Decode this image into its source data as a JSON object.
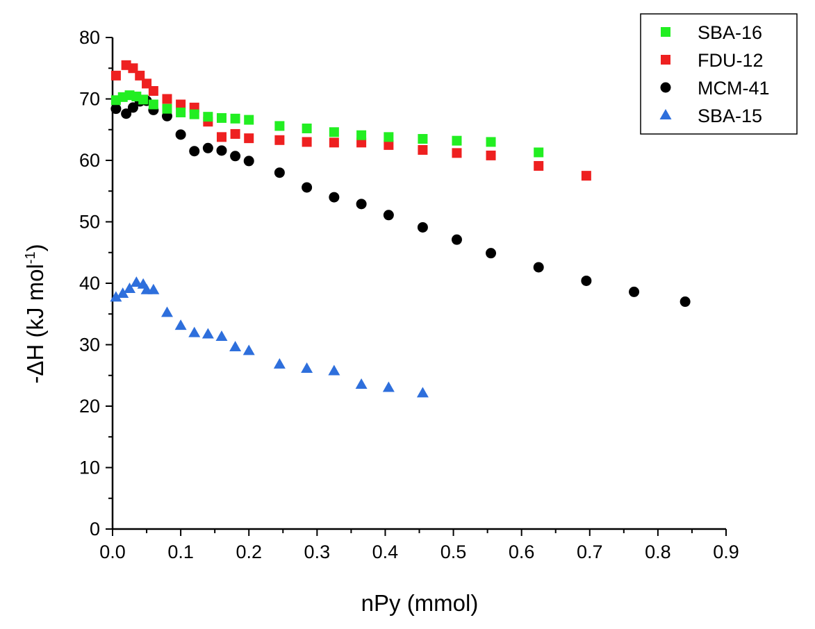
{
  "chart_data": {
    "type": "scatter",
    "title": "",
    "xlabel": "nPy (mmol)",
    "ylabel_main": "-ΔH (kJ mol",
    "ylabel_sup": "-1",
    "ylabel_close": ")",
    "xlim": [
      0.0,
      0.9
    ],
    "ylim": [
      0,
      80
    ],
    "xticks": [
      "0.0",
      "0.1",
      "0.2",
      "0.3",
      "0.4",
      "0.5",
      "0.6",
      "0.7",
      "0.8",
      "0.9"
    ],
    "yticks": [
      "0",
      "10",
      "20",
      "30",
      "40",
      "50",
      "60",
      "70",
      "80"
    ],
    "grid": false,
    "legend_position": "top-right",
    "series": [
      {
        "name": "SBA-16",
        "marker": "square",
        "color": "#22ee22",
        "points": [
          [
            0.005,
            69.8
          ],
          [
            0.015,
            70.3
          ],
          [
            0.025,
            70.6
          ],
          [
            0.035,
            70.4
          ],
          [
            0.045,
            69.9
          ],
          [
            0.06,
            69.1
          ],
          [
            0.08,
            68.4
          ],
          [
            0.1,
            67.8
          ],
          [
            0.12,
            67.5
          ],
          [
            0.14,
            67.1
          ],
          [
            0.16,
            66.9
          ],
          [
            0.18,
            66.8
          ],
          [
            0.2,
            66.6
          ],
          [
            0.245,
            65.6
          ],
          [
            0.285,
            65.2
          ],
          [
            0.325,
            64.6
          ],
          [
            0.365,
            64.1
          ],
          [
            0.405,
            63.8
          ],
          [
            0.455,
            63.5
          ],
          [
            0.505,
            63.2
          ],
          [
            0.555,
            63.0
          ],
          [
            0.625,
            61.3
          ]
        ]
      },
      {
        "name": "FDU-12",
        "marker": "square",
        "color": "#ee2020",
        "points": [
          [
            0.005,
            73.8
          ],
          [
            0.02,
            75.5
          ],
          [
            0.03,
            75.0
          ],
          [
            0.04,
            73.8
          ],
          [
            0.05,
            72.5
          ],
          [
            0.06,
            71.3
          ],
          [
            0.08,
            70.0
          ],
          [
            0.1,
            69.1
          ],
          [
            0.12,
            68.6
          ],
          [
            0.14,
            66.3
          ],
          [
            0.16,
            63.8
          ],
          [
            0.18,
            64.3
          ],
          [
            0.2,
            63.6
          ],
          [
            0.245,
            63.3
          ],
          [
            0.285,
            63.0
          ],
          [
            0.325,
            62.9
          ],
          [
            0.365,
            62.9
          ],
          [
            0.405,
            62.5
          ],
          [
            0.455,
            61.7
          ],
          [
            0.505,
            61.2
          ],
          [
            0.555,
            60.8
          ],
          [
            0.625,
            59.1
          ],
          [
            0.695,
            57.5
          ]
        ]
      },
      {
        "name": "MCM-41",
        "marker": "circle",
        "color": "#000000",
        "points": [
          [
            0.005,
            68.4
          ],
          [
            0.02,
            67.6
          ],
          [
            0.03,
            68.6
          ],
          [
            0.04,
            69.6
          ],
          [
            0.05,
            69.7
          ],
          [
            0.06,
            68.2
          ],
          [
            0.08,
            67.2
          ],
          [
            0.1,
            64.2
          ],
          [
            0.12,
            61.5
          ],
          [
            0.14,
            62.0
          ],
          [
            0.16,
            61.6
          ],
          [
            0.18,
            60.7
          ],
          [
            0.2,
            59.9
          ],
          [
            0.245,
            58.0
          ],
          [
            0.285,
            55.6
          ],
          [
            0.325,
            54.0
          ],
          [
            0.365,
            52.9
          ],
          [
            0.405,
            51.1
          ],
          [
            0.455,
            49.1
          ],
          [
            0.505,
            47.1
          ],
          [
            0.555,
            44.9
          ],
          [
            0.625,
            42.6
          ],
          [
            0.695,
            40.4
          ],
          [
            0.765,
            38.6
          ],
          [
            0.84,
            37.0
          ]
        ]
      },
      {
        "name": "SBA-15",
        "marker": "triangle",
        "color": "#2e6fdc",
        "points": [
          [
            0.005,
            37.7
          ],
          [
            0.015,
            38.3
          ],
          [
            0.025,
            39.1
          ],
          [
            0.035,
            40.1
          ],
          [
            0.045,
            39.8
          ],
          [
            0.05,
            38.9
          ],
          [
            0.06,
            38.9
          ],
          [
            0.08,
            35.2
          ],
          [
            0.1,
            33.1
          ],
          [
            0.12,
            31.9
          ],
          [
            0.14,
            31.7
          ],
          [
            0.16,
            31.3
          ],
          [
            0.18,
            29.6
          ],
          [
            0.2,
            29.0
          ],
          [
            0.245,
            26.8
          ],
          [
            0.285,
            26.1
          ],
          [
            0.325,
            25.7
          ],
          [
            0.365,
            23.5
          ],
          [
            0.405,
            23.0
          ],
          [
            0.455,
            22.1
          ]
        ]
      }
    ]
  }
}
